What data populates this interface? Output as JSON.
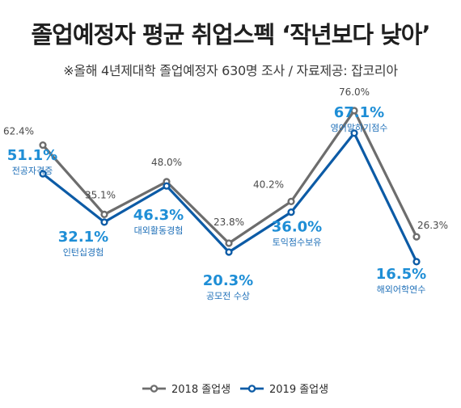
{
  "title": "졸업예정자 평균 취업스펙 ‘작년보다 낮아’",
  "subtitle": "※올해 4년제대학 졸업예정자 630명 조사  / 자료제공: 잡코리아",
  "chart_data": {
    "type": "line",
    "categories": [
      "전공자격증",
      "인턴십경험",
      "대외활동경험",
      "공모전 수상",
      "토익점수보유",
      "영어말하기점수",
      "해외어학연수"
    ],
    "series": [
      {
        "name": "2018 졸업생",
        "values": [
          62.4,
          35.1,
          48.0,
          23.8,
          40.2,
          76.0,
          26.3
        ],
        "color": "#6d6d6d"
      },
      {
        "name": "2019 졸업생",
        "values": [
          51.1,
          32.1,
          46.3,
          20.3,
          36.0,
          67.1,
          16.5
        ],
        "color": "#0c5ba6"
      }
    ],
    "labels_2018": [
      "62.4%",
      "35.1%",
      "48.0%",
      "23.8%",
      "40.2%",
      "76.0%",
      "26.3%"
    ],
    "labels_2019": [
      "51.1%",
      "32.1%",
      "46.3%",
      "20.3%",
      "36.0%",
      "67.1%",
      "16.5%"
    ],
    "value_label_color": "#1e8ed6",
    "category_label_color": "#1e6fb8",
    "legend_placement": "bottom-center",
    "grid": false
  }
}
